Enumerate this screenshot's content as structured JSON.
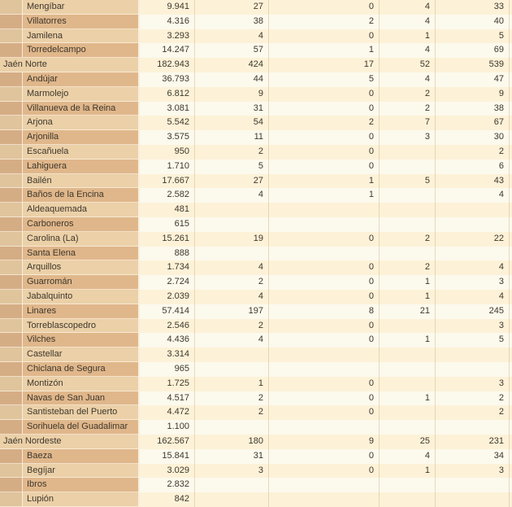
{
  "table": {
    "rows": [
      {
        "name": "Mengíbar",
        "level": 1,
        "values": [
          "9.941",
          "27",
          "0",
          "4",
          "33"
        ]
      },
      {
        "name": "Villatorres",
        "level": 1,
        "values": [
          "4.316",
          "38",
          "2",
          "4",
          "40"
        ]
      },
      {
        "name": "Jamilena",
        "level": 1,
        "values": [
          "3.293",
          "4",
          "0",
          "1",
          "5"
        ]
      },
      {
        "name": "Torredelcampo",
        "level": 1,
        "values": [
          "14.247",
          "57",
          "1",
          "4",
          "69"
        ]
      },
      {
        "name": "Jaén Norte",
        "level": 0,
        "values": [
          "182.943",
          "424",
          "17",
          "52",
          "539"
        ]
      },
      {
        "name": "Andújar",
        "level": 1,
        "values": [
          "36.793",
          "44",
          "5",
          "4",
          "47"
        ]
      },
      {
        "name": "Marmolejo",
        "level": 1,
        "values": [
          "6.812",
          "9",
          "0",
          "2",
          "9"
        ]
      },
      {
        "name": "Villanueva de la Reina",
        "level": 1,
        "values": [
          "3.081",
          "31",
          "0",
          "2",
          "38"
        ]
      },
      {
        "name": "Arjona",
        "level": 1,
        "values": [
          "5.542",
          "54",
          "2",
          "7",
          "67"
        ]
      },
      {
        "name": "Arjonilla",
        "level": 1,
        "values": [
          "3.575",
          "11",
          "0",
          "3",
          "30"
        ]
      },
      {
        "name": "Escañuela",
        "level": 1,
        "values": [
          "950",
          "2",
          "0",
          "",
          "2"
        ]
      },
      {
        "name": "Lahiguera",
        "level": 1,
        "values": [
          "1.710",
          "5",
          "0",
          "",
          "6"
        ]
      },
      {
        "name": "Bailén",
        "level": 1,
        "values": [
          "17.667",
          "27",
          "1",
          "5",
          "43"
        ]
      },
      {
        "name": "Baños de la Encina",
        "level": 1,
        "values": [
          "2.582",
          "4",
          "1",
          "",
          "4"
        ]
      },
      {
        "name": "Aldeaquemada",
        "level": 1,
        "values": [
          "481",
          "",
          "",
          "",
          ""
        ]
      },
      {
        "name": "Carboneros",
        "level": 1,
        "values": [
          "615",
          "",
          "",
          "",
          ""
        ]
      },
      {
        "name": "Carolina (La)",
        "level": 1,
        "values": [
          "15.261",
          "19",
          "0",
          "2",
          "22"
        ]
      },
      {
        "name": "Santa Elena",
        "level": 1,
        "values": [
          "888",
          "",
          "",
          "",
          ""
        ]
      },
      {
        "name": "Arquillos",
        "level": 1,
        "values": [
          "1.734",
          "4",
          "0",
          "2",
          "4"
        ]
      },
      {
        "name": "Guarromán",
        "level": 1,
        "values": [
          "2.724",
          "2",
          "0",
          "1",
          "3"
        ]
      },
      {
        "name": "Jabalquinto",
        "level": 1,
        "values": [
          "2.039",
          "4",
          "0",
          "1",
          "4"
        ]
      },
      {
        "name": "Linares",
        "level": 1,
        "values": [
          "57.414",
          "197",
          "8",
          "21",
          "245"
        ]
      },
      {
        "name": "Torreblascopedro",
        "level": 1,
        "values": [
          "2.546",
          "2",
          "0",
          "",
          "3"
        ]
      },
      {
        "name": "Vilches",
        "level": 1,
        "values": [
          "4.436",
          "4",
          "0",
          "1",
          "5"
        ]
      },
      {
        "name": "Castellar",
        "level": 1,
        "values": [
          "3.314",
          "",
          "",
          "",
          ""
        ]
      },
      {
        "name": "Chiclana de Segura",
        "level": 1,
        "values": [
          "965",
          "",
          "",
          "",
          ""
        ]
      },
      {
        "name": "Montizón",
        "level": 1,
        "values": [
          "1.725",
          "1",
          "0",
          "",
          "3"
        ]
      },
      {
        "name": "Navas de San Juan",
        "level": 1,
        "values": [
          "4.517",
          "2",
          "0",
          "1",
          "2"
        ]
      },
      {
        "name": "Santisteban del Puerto",
        "level": 1,
        "values": [
          "4.472",
          "2",
          "0",
          "",
          "2"
        ]
      },
      {
        "name": "Sorihuela del Guadalimar",
        "level": 1,
        "values": [
          "1.100",
          "",
          "",
          "",
          ""
        ]
      },
      {
        "name": "Jaén Nordeste",
        "level": 0,
        "values": [
          "162.567",
          "180",
          "9",
          "25",
          "231"
        ]
      },
      {
        "name": "Baeza",
        "level": 1,
        "values": [
          "15.841",
          "31",
          "0",
          "4",
          "34"
        ]
      },
      {
        "name": "Begíjar",
        "level": 1,
        "values": [
          "3.029",
          "3",
          "0",
          "1",
          "3"
        ]
      },
      {
        "name": "Ibros",
        "level": 1,
        "values": [
          "2.832",
          "",
          "",
          "",
          ""
        ]
      },
      {
        "name": "Lupión",
        "level": 1,
        "values": [
          "842",
          "",
          "",
          "",
          ""
        ]
      }
    ]
  },
  "colors": {
    "name_even_bg": "#ebd0a8",
    "name_odd_bg": "#e0b78b",
    "data_even_bg": "#fdf2d8",
    "data_odd_bg": "#fcf9ed",
    "indent_strip_even_bg": "#e0c49c",
    "indent_strip_odd_bg": "#d5ad85",
    "gridline": "#d8c096",
    "text": "#3e372b"
  }
}
